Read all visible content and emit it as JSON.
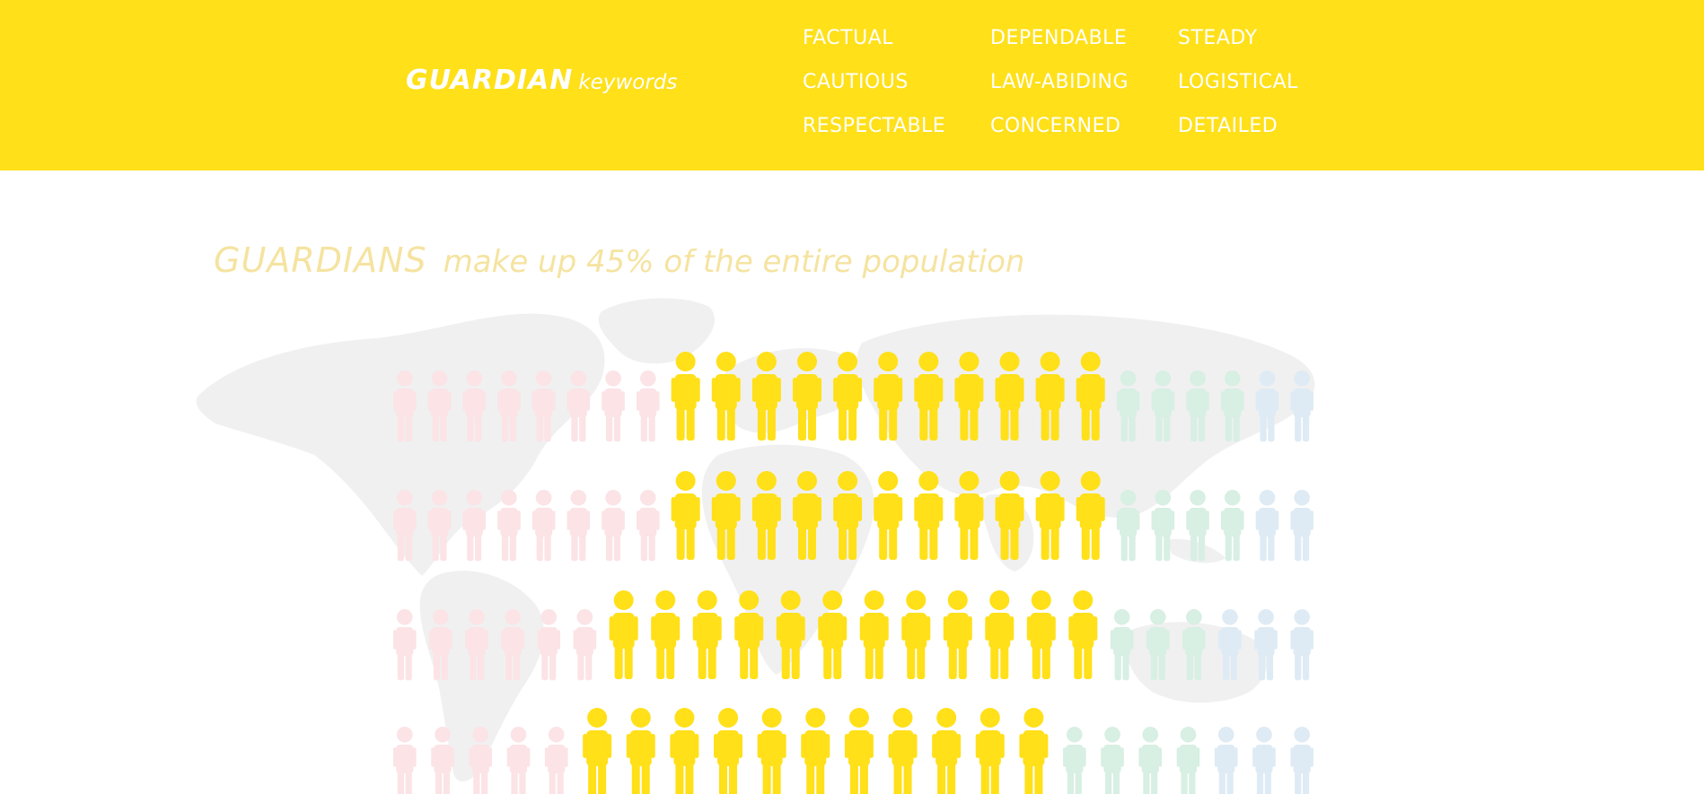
{
  "header": {
    "title_strong": "GUARDIAN",
    "title_light": "keywords",
    "keywords": [
      "FACTUAL",
      "DEPENDABLE",
      "STEADY",
      "CAUTIOUS",
      "LAW-ABIDING",
      "LOGISTICAL",
      "RESPECTABLE",
      "CONCERNED",
      "DETAILED"
    ]
  },
  "headline": {
    "strong": "GUARDIANS",
    "rest": "make up 45% of the entire population"
  },
  "map": {
    "icon": "world-map"
  },
  "figures": {
    "icon": "person-icon",
    "colors": {
      "pink": "#fbe3e6",
      "yellow": "#ffe019",
      "green": "#d8efe3",
      "blue": "#deebf5"
    },
    "rows": [
      {
        "pink": 8,
        "yellow": 11,
        "green": 4,
        "blue": 2
      },
      {
        "pink": 8,
        "yellow": 11,
        "green": 4,
        "blue": 2
      },
      {
        "pink": 6,
        "yellow": 12,
        "green": 3,
        "blue": 3
      },
      {
        "pink": 5,
        "yellow": 11,
        "green": 4,
        "blue": 3
      }
    ]
  }
}
